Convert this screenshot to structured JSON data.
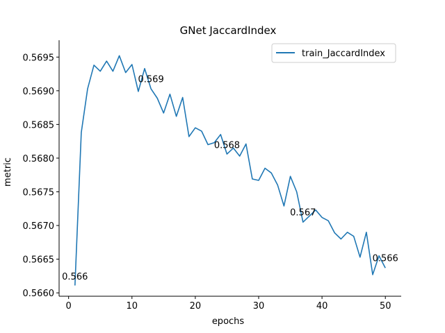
{
  "chart_data": {
    "type": "line",
    "title": "GNet JaccardIndex",
    "xlabel": "epochs",
    "ylabel": "metric",
    "xlim": [
      -1.5,
      52.5
    ],
    "ylim": [
      0.56595,
      0.56975
    ],
    "xticks": [
      0,
      10,
      20,
      30,
      40,
      50
    ],
    "xtick_labels": [
      "0",
      "10",
      "20",
      "30",
      "40",
      "50"
    ],
    "yticks": [
      0.566,
      0.5665,
      0.567,
      0.5675,
      0.568,
      0.5685,
      0.569,
      0.5695
    ],
    "ytick_labels": [
      "0.5660",
      "0.5665",
      "0.5670",
      "0.5675",
      "0.5680",
      "0.5685",
      "0.5690",
      "0.5695"
    ],
    "grid": false,
    "legend_position": "top-right",
    "series": [
      {
        "name": "train_JaccardIndex",
        "color": "#1f77b4",
        "x": [
          1,
          2,
          3,
          4,
          5,
          6,
          7,
          8,
          9,
          10,
          11,
          12,
          13,
          14,
          15,
          16,
          17,
          18,
          19,
          20,
          21,
          22,
          23,
          24,
          25,
          26,
          27,
          28,
          29,
          30,
          31,
          32,
          33,
          34,
          35,
          36,
          37,
          38,
          39,
          40,
          41,
          42,
          43,
          44,
          45,
          46,
          47,
          48,
          49,
          50
        ],
        "values": [
          0.56611,
          0.56838,
          0.56903,
          0.56938,
          0.56929,
          0.56944,
          0.56929,
          0.56952,
          0.56927,
          0.56939,
          0.56899,
          0.56933,
          0.56903,
          0.56889,
          0.56867,
          0.56895,
          0.56862,
          0.5689,
          0.56832,
          0.56845,
          0.5684,
          0.5682,
          0.56823,
          0.56835,
          0.56806,
          0.56815,
          0.56803,
          0.56821,
          0.56769,
          0.56767,
          0.56785,
          0.56778,
          0.5676,
          0.56729,
          0.56773,
          0.5675,
          0.56705,
          0.56714,
          0.56723,
          0.56712,
          0.56707,
          0.56689,
          0.5668,
          0.5669,
          0.56684,
          0.56653,
          0.5669,
          0.56627,
          0.56655,
          0.56637
        ]
      }
    ],
    "annotations": [
      {
        "text": "0.566",
        "x": 1,
        "y": 0.56625
      },
      {
        "text": "0.569",
        "x": 13,
        "y": 0.56918
      },
      {
        "text": "0.568",
        "x": 25,
        "y": 0.5682
      },
      {
        "text": "0.567",
        "x": 37,
        "y": 0.5672
      },
      {
        "text": "0.566",
        "x": 50,
        "y": 0.56652
      }
    ]
  }
}
